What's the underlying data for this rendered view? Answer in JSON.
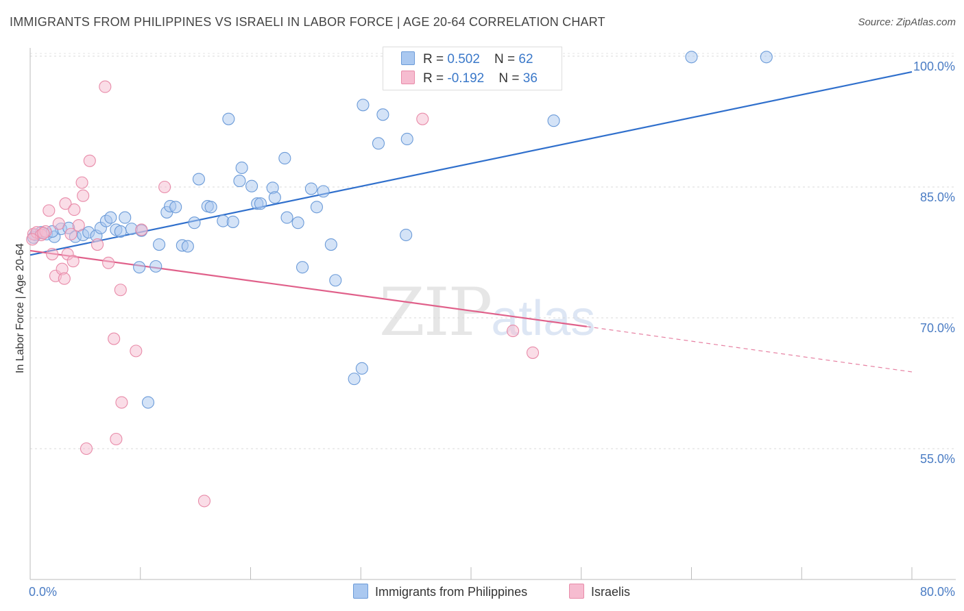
{
  "header": {
    "title": "IMMIGRANTS FROM PHILIPPINES VS ISRAELI IN LABOR FORCE | AGE 20-64 CORRELATION CHART",
    "source": "Source: ZipAtlas.com"
  },
  "watermark": {
    "zip": "ZIP",
    "atlas": "atlas"
  },
  "legend": {
    "series1": {
      "r_label": "R = ",
      "r_value": "0.502",
      "n_label": "N = ",
      "n_value": "62"
    },
    "series2": {
      "r_label": "R = ",
      "r_value": "-0.192",
      "n_label": "N = ",
      "n_value": "36"
    }
  },
  "colors": {
    "blue_fill": "#aac8f0",
    "blue_stroke": "#6a9ad8",
    "blue_line": "#2f6fcc",
    "pink_fill": "#f6bcd0",
    "pink_stroke": "#e88aa8",
    "pink_line": "#e0608a",
    "tick_label": "#4a7cc4"
  },
  "chart_data": {
    "type": "scatter",
    "xlabel": "",
    "ylabel": "In Labor Force | Age 20-64",
    "xlim": [
      0,
      80
    ],
    "ylim": [
      40,
      103
    ],
    "x_tick_labels": [
      {
        "value": 0,
        "label": "0.0%"
      },
      {
        "value": 80,
        "label": "80.0%"
      }
    ],
    "y_tick_labels": [
      {
        "value": 100,
        "label": "100.0%"
      },
      {
        "value": 85,
        "label": "85.0%"
      },
      {
        "value": 70,
        "label": "70.0%"
      },
      {
        "value": 55,
        "label": "55.0%"
      }
    ],
    "grid": true,
    "legend_position": "bottom",
    "series": [
      {
        "name": "Immigrants from Philippines",
        "points": [
          [
            0.5,
            79.5
          ],
          [
            1.0,
            79.8
          ],
          [
            1.5,
            79.6
          ],
          [
            2.2,
            79.3
          ],
          [
            2.8,
            80.2
          ],
          [
            3.5,
            80.3
          ],
          [
            4.1,
            79.3
          ],
          [
            4.8,
            79.5
          ],
          [
            5.3,
            79.8
          ],
          [
            6.0,
            79.4
          ],
          [
            6.4,
            80.3
          ],
          [
            6.9,
            81.1
          ],
          [
            7.3,
            81.5
          ],
          [
            7.8,
            80.1
          ],
          [
            8.2,
            79.9
          ],
          [
            8.6,
            81.5
          ],
          [
            9.2,
            80.2
          ],
          [
            10.1,
            80.0
          ],
          [
            9.9,
            75.8
          ],
          [
            11.4,
            75.9
          ],
          [
            11.7,
            78.4
          ],
          [
            12.4,
            82.1
          ],
          [
            12.7,
            82.8
          ],
          [
            13.2,
            82.7
          ],
          [
            13.8,
            78.3
          ],
          [
            14.3,
            78.2
          ],
          [
            14.9,
            80.9
          ],
          [
            15.3,
            85.9
          ],
          [
            16.1,
            82.8
          ],
          [
            16.4,
            82.7
          ],
          [
            17.5,
            81.1
          ],
          [
            18.0,
            92.8
          ],
          [
            18.4,
            81.0
          ],
          [
            19.0,
            85.7
          ],
          [
            19.2,
            87.2
          ],
          [
            20.1,
            85.1
          ],
          [
            20.6,
            83.1
          ],
          [
            20.9,
            83.1
          ],
          [
            22.0,
            84.9
          ],
          [
            22.2,
            83.8
          ],
          [
            23.1,
            88.3
          ],
          [
            23.3,
            81.5
          ],
          [
            24.3,
            80.9
          ],
          [
            24.7,
            75.8
          ],
          [
            25.5,
            84.8
          ],
          [
            26.0,
            82.7
          ],
          [
            26.6,
            84.5
          ],
          [
            27.3,
            78.4
          ],
          [
            27.7,
            74.3
          ],
          [
            29.4,
            63.0
          ],
          [
            30.1,
            64.2
          ],
          [
            30.2,
            94.4
          ],
          [
            31.6,
            90.0
          ],
          [
            32.0,
            93.3
          ],
          [
            34.2,
            90.5
          ],
          [
            34.1,
            79.5
          ],
          [
            10.7,
            60.3
          ],
          [
            47.5,
            92.6
          ],
          [
            60.0,
            99.9
          ],
          [
            66.8,
            99.9
          ],
          [
            0.3,
            79.2
          ],
          [
            2.0,
            79.9
          ]
        ],
        "trendline": {
          "x": [
            0,
            80
          ],
          "y": [
            77.2,
            98.2
          ],
          "style": "solid"
        }
      },
      {
        "name": "Israelis",
        "points": [
          [
            0.3,
            79.6
          ],
          [
            0.6,
            79.8
          ],
          [
            1.0,
            79.5
          ],
          [
            1.4,
            79.9
          ],
          [
            1.7,
            82.3
          ],
          [
            2.0,
            77.3
          ],
          [
            2.3,
            74.8
          ],
          [
            2.6,
            80.8
          ],
          [
            2.9,
            75.6
          ],
          [
            3.1,
            74.5
          ],
          [
            3.2,
            83.1
          ],
          [
            3.4,
            77.3
          ],
          [
            3.7,
            79.6
          ],
          [
            3.9,
            76.5
          ],
          [
            4.0,
            82.4
          ],
          [
            4.4,
            80.6
          ],
          [
            4.7,
            85.5
          ],
          [
            4.8,
            84.0
          ],
          [
            5.1,
            55.0
          ],
          [
            5.4,
            88.0
          ],
          [
            6.1,
            78.4
          ],
          [
            6.8,
            96.5
          ],
          [
            7.1,
            76.3
          ],
          [
            7.6,
            67.6
          ],
          [
            7.8,
            56.1
          ],
          [
            8.2,
            73.2
          ],
          [
            8.3,
            60.3
          ],
          [
            9.6,
            66.2
          ],
          [
            10.1,
            80.1
          ],
          [
            12.2,
            85.0
          ],
          [
            15.8,
            49.0
          ],
          [
            35.6,
            92.8
          ],
          [
            43.8,
            68.5
          ],
          [
            45.6,
            66.0
          ],
          [
            0.2,
            79.0
          ],
          [
            1.2,
            79.7
          ]
        ],
        "trendline": {
          "x": [
            0,
            50.5
          ],
          "y": [
            77.7,
            69.0
          ],
          "style": "solid",
          "extension": {
            "x": [
              50.5,
              80
            ],
            "y": [
              69.0,
              63.8
            ],
            "style": "dashed"
          }
        }
      }
    ]
  }
}
